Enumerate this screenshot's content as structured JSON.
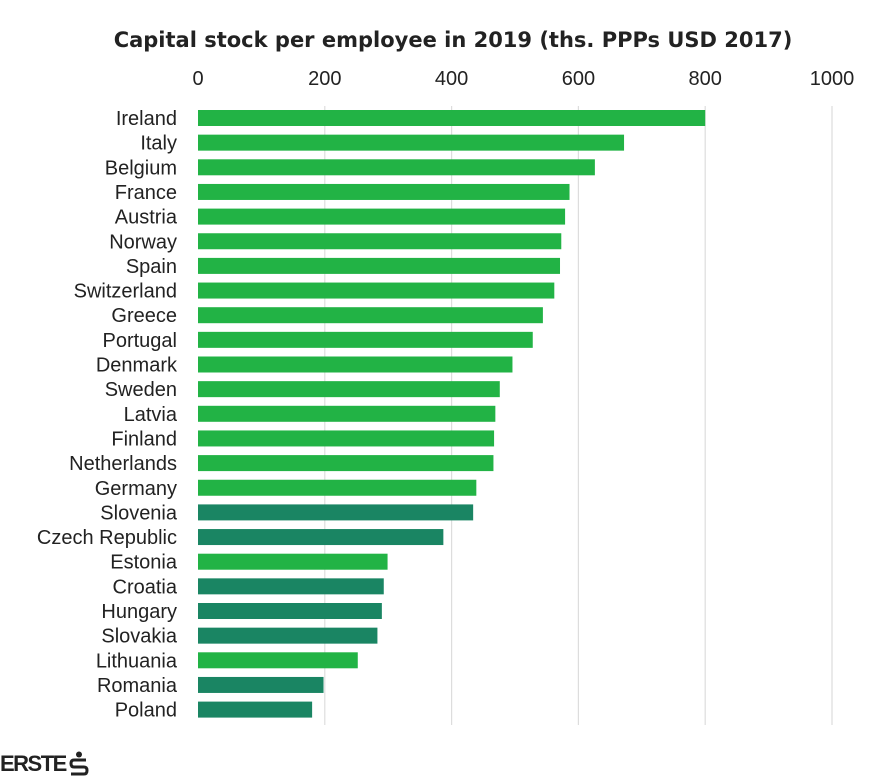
{
  "chart_data": {
    "type": "bar",
    "orientation": "horizontal",
    "title": "Capital stock per employee in 2019 (ths. PPPs USD 2017)",
    "xlim": [
      0,
      1000
    ],
    "x_ticks": [
      0,
      200,
      400,
      600,
      800,
      1000
    ],
    "x_axis_position": "top",
    "grid": true,
    "legend": "none",
    "categories": [
      "Ireland",
      "Italy",
      "Belgium",
      "France",
      "Austria",
      "Norway",
      "Spain",
      "Switzerland",
      "Greece",
      "Portugal",
      "Denmark",
      "Sweden",
      "Latvia",
      "Finland",
      "Netherlands",
      "Germany",
      "Slovenia",
      "Czech Republic",
      "Estonia",
      "Croatia",
      "Hungary",
      "Slovakia",
      "Lithuania",
      "Romania",
      "Poland"
    ],
    "values": [
      800,
      672,
      626,
      586,
      579,
      573,
      571,
      562,
      544,
      528,
      496,
      476,
      469,
      467,
      466,
      439,
      434,
      387,
      299,
      293,
      290,
      283,
      252,
      198,
      180
    ],
    "bar_colors": [
      "#22b345",
      "#22b345",
      "#22b345",
      "#22b345",
      "#22b345",
      "#22b345",
      "#22b345",
      "#22b345",
      "#22b345",
      "#22b345",
      "#22b345",
      "#22b345",
      "#22b345",
      "#22b345",
      "#22b345",
      "#22b345",
      "#1a8563",
      "#1a8563",
      "#22b345",
      "#1a8563",
      "#1a8563",
      "#1a8563",
      "#22b345",
      "#1a8563",
      "#1a8563"
    ]
  },
  "colors": {
    "light_green": "#22b345",
    "dark_green": "#1a8563",
    "grid": "#dddddd",
    "text": "#222222"
  },
  "branding": {
    "logo_text": "ERSTE",
    "logo_icon": "erste-s-mark-icon"
  }
}
